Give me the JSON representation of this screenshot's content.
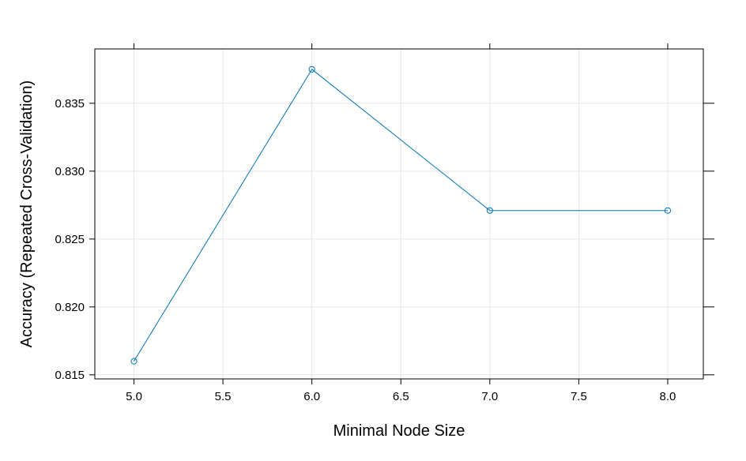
{
  "chart_data": {
    "type": "line",
    "xlabel": "Minimal Node Size",
    "ylabel": "Accuracy (Repeated Cross-Validation)",
    "xlim": [
      4.78,
      8.2
    ],
    "ylim": [
      0.8147,
      0.839
    ],
    "x_ticks": [
      5.0,
      5.5,
      6.0,
      6.5,
      7.0,
      7.5,
      8.0
    ],
    "x_tick_labels": [
      "5.0",
      "5.5",
      "6.0",
      "6.5",
      "7.0",
      "7.5",
      "8.0"
    ],
    "y_ticks": [
      0.815,
      0.82,
      0.825,
      0.83,
      0.835
    ],
    "y_tick_labels": [
      "0.815",
      "0.820",
      "0.825",
      "0.830",
      "0.835"
    ],
    "top_ticks": [
      5.0,
      6.0,
      7.0,
      8.0
    ],
    "grid": true,
    "series": [
      {
        "color": "#0072b2",
        "marker": "open-circle",
        "x": [
          5.0,
          6.0,
          7.0,
          8.0
        ],
        "y": [
          0.816,
          0.8375,
          0.8271,
          0.8271
        ]
      }
    ]
  }
}
